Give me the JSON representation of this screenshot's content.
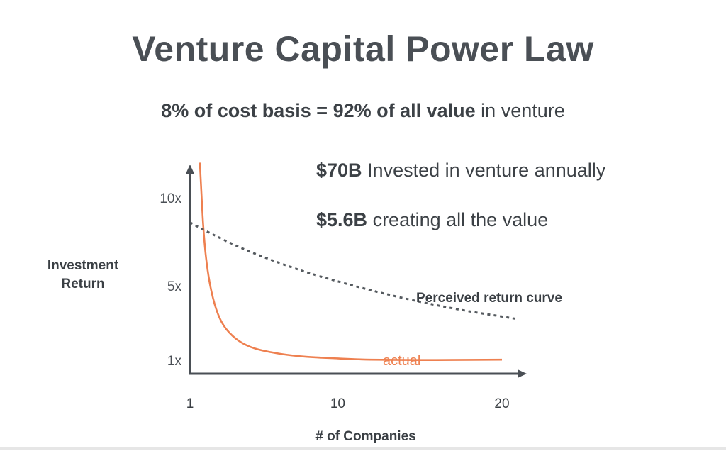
{
  "title": "Venture Capital Power Law",
  "subtitle": {
    "part1": "8% of cost basis =  92% of all value",
    "part2": " in venture"
  },
  "stats": [
    {
      "bold": "$70B",
      "rest": " Invested in venture annually"
    },
    {
      "bold": "$5.6B",
      "rest": " creating all the value"
    }
  ],
  "colors": {
    "actual": "#ee8050",
    "perceived": "#555a5f",
    "axis": "#4a4f55"
  },
  "chart_data": {
    "type": "line",
    "xlabel": "# of Companies",
    "ylabel": "Investment Return",
    "x_ticks": [
      {
        "label": "1",
        "value": 1
      },
      {
        "label": "10",
        "value": 10
      },
      {
        "label": "20",
        "value": 20
      }
    ],
    "y_ticks": [
      {
        "label": "10x",
        "value": 10
      },
      {
        "label": "5x",
        "value": 5
      },
      {
        "label": "1x",
        "value": 1
      }
    ],
    "x_axis_extent": [
      1,
      21
    ],
    "y_axis_extent": [
      0,
      12
    ],
    "series": [
      {
        "name": "actual",
        "style": "solid",
        "x": [
          1.6,
          1.8,
          2,
          2.3,
          2.7,
          3.2,
          4,
          5,
          6.5,
          8,
          10,
          12,
          15,
          18,
          20
        ],
        "y": [
          12,
          8.5,
          6.4,
          4.7,
          3.4,
          2.55,
          1.85,
          1.42,
          1.13,
          0.97,
          0.87,
          0.8,
          0.78,
          0.79,
          0.8
        ]
      },
      {
        "name": "Perceived return curve",
        "style": "dashed",
        "x": [
          1,
          2,
          4,
          6,
          8,
          10,
          12,
          14,
          16,
          18,
          20,
          21
        ],
        "y": [
          8.6,
          8.1,
          7.2,
          6.45,
          5.8,
          5.25,
          4.75,
          4.3,
          3.9,
          3.55,
          3.25,
          3.1
        ]
      }
    ]
  }
}
